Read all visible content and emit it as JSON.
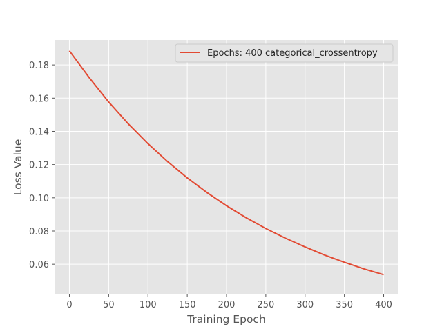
{
  "chart_data": {
    "type": "line",
    "title": "",
    "xlabel": "Training Epoch",
    "ylabel": "Loss Value",
    "xlim": [
      -18,
      418
    ],
    "ylim": [
      0.0418,
      0.195
    ],
    "xticks": [
      0,
      50,
      100,
      150,
      200,
      250,
      300,
      350,
      400
    ],
    "yticks": [
      0.06,
      0.08,
      0.1,
      0.12,
      0.14,
      0.16,
      0.18
    ],
    "ytick_labels": [
      "0.06",
      "0.08",
      "0.10",
      "0.12",
      "0.14",
      "0.16",
      "0.18"
    ],
    "grid": true,
    "legend_position": "top-right",
    "series": [
      {
        "name": "Epochs: 400 categorical_crossentropy",
        "color": "#e24a33",
        "x": [
          0,
          25,
          50,
          75,
          100,
          125,
          150,
          175,
          200,
          225,
          250,
          275,
          300,
          325,
          350,
          375,
          400
        ],
        "y": [
          0.1885,
          0.1725,
          0.1577,
          0.1445,
          0.1326,
          0.1218,
          0.112,
          0.1032,
          0.0952,
          0.088,
          0.0815,
          0.0757,
          0.0704,
          0.0655,
          0.0612,
          0.0572,
          0.0537
        ]
      }
    ]
  },
  "colors": {
    "plot_background": "#e5e5e5",
    "grid": "#ffffff",
    "line": "#e24a33"
  }
}
